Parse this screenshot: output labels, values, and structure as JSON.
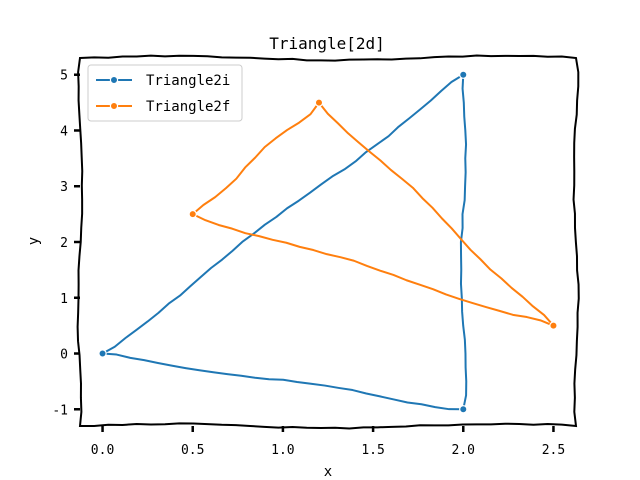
{
  "chart_data": {
    "type": "line",
    "title": "Triangle[2d]",
    "xlabel": "x",
    "ylabel": "y",
    "xlim": [
      -0.125,
      2.625
    ],
    "ylim": [
      -1.3,
      5.3
    ],
    "xticks": [
      "0.0",
      "0.5",
      "1.0",
      "1.5",
      "2.0",
      "2.5"
    ],
    "xtick_values": [
      0,
      0.5,
      1,
      1.5,
      2,
      2.5
    ],
    "yticks": [
      "-1",
      "0",
      "1",
      "2",
      "3",
      "4",
      "5"
    ],
    "ytick_values": [
      -1,
      0,
      1,
      2,
      3,
      4,
      5
    ],
    "grid": false,
    "legend": "top-left",
    "series": [
      {
        "name": "Triangle2i",
        "color": "#1f77b4",
        "x": [
          0,
          2,
          2,
          0
        ],
        "y": [
          0,
          5,
          -1,
          0
        ]
      },
      {
        "name": "Triangle2f",
        "color": "#ff7f0e",
        "x": [
          0.5,
          1.2,
          2.5,
          0.5
        ],
        "y": [
          2.5,
          4.5,
          0.5,
          2.5
        ]
      }
    ]
  }
}
